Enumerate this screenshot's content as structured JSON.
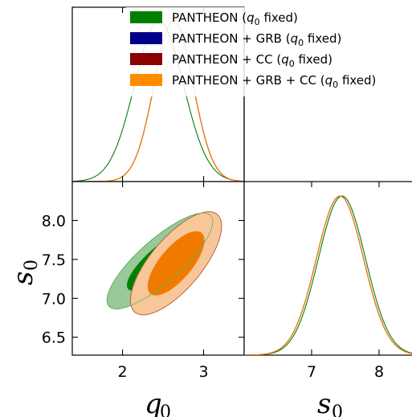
{
  "chart_data": {
    "type": "triangle-corner-plot",
    "legend": {
      "placement": "top-right",
      "entries": [
        {
          "label": "PANTHEON (",
          "param": "q",
          "sub": "0",
          "suffix": " fixed)",
          "color": "#008000"
        },
        {
          "label": "PANTHEON + GRB (",
          "param": "q",
          "sub": "0",
          "suffix": " fixed)",
          "color": "#00008b"
        },
        {
          "label": "PANTHEON + CC (",
          "param": "q",
          "sub": "0",
          "suffix": " fixed)",
          "color": "#8b0000"
        },
        {
          "label": "PANTHEON + GRB + CC (",
          "param": "q",
          "sub": "0",
          "suffix": " fixed)",
          "color": "#ff8c00"
        }
      ]
    },
    "axes": {
      "q0": {
        "symbol": "q",
        "sub": "0",
        "range": [
          1.38,
          3.5
        ],
        "ticks": [
          2,
          3
        ],
        "tick_labels": [
          "2",
          "3"
        ]
      },
      "s0": {
        "symbol": "s",
        "sub": "0",
        "range": [
          6.27,
          8.5
        ],
        "ticks": [
          6.5,
          7.0,
          7.5,
          8.0
        ],
        "tick_labels": [
          "6.5",
          "7.0",
          "7.5",
          "8.0"
        ]
      },
      "s0_x": {
        "range": [
          6.0,
          8.5
        ],
        "ticks": [
          7,
          8
        ],
        "tick_labels": [
          "7",
          "8"
        ]
      }
    },
    "series": [
      {
        "name": "PANTHEON (q0 fixed)",
        "color": "#008000",
        "fill68": "#008000",
        "fill95": "#98c998",
        "edge": "#2e8b2e",
        "q0_marginal": {
          "mean": 2.45,
          "sigma": 0.3
        },
        "s0_marginal": {
          "mean": 7.45,
          "sigma": 0.35
        },
        "contour": {
          "center": [
            2.46,
            7.48
          ],
          "sigma_q": 0.36,
          "sigma_s": 0.34,
          "rho": 0.82,
          "shown": "68%-partially-covered"
        }
      },
      {
        "name": "PANTHEON + GRB (q0 fixed)",
        "color": "#00008b",
        "q0_marginal": {
          "mean": 2.63,
          "sigma": 0.24
        },
        "s0_marginal": {
          "mean": 7.42,
          "sigma": 0.35
        }
      },
      {
        "name": "PANTHEON + CC (q0 fixed)",
        "color": "#8b0000",
        "edge": "#a0522d",
        "q0_marginal": {
          "mean": 2.63,
          "sigma": 0.24
        },
        "s0_marginal": {
          "mean": 7.42,
          "sigma": 0.35
        }
      },
      {
        "name": "PANTHEON + GRB + CC (q0 fixed)",
        "color": "#ff8c00",
        "fill68": "#f07a00",
        "fill95": "#f7c79a",
        "edge": "#b5653a",
        "q0_marginal": {
          "mean": 2.63,
          "sigma": 0.24
        },
        "s0_marginal": {
          "mean": 7.42,
          "sigma": 0.35
        },
        "contour": {
          "center": [
            2.66,
            7.45
          ],
          "sigma_q": 0.28,
          "sigma_s": 0.33,
          "rho": 0.72
        }
      }
    ]
  }
}
